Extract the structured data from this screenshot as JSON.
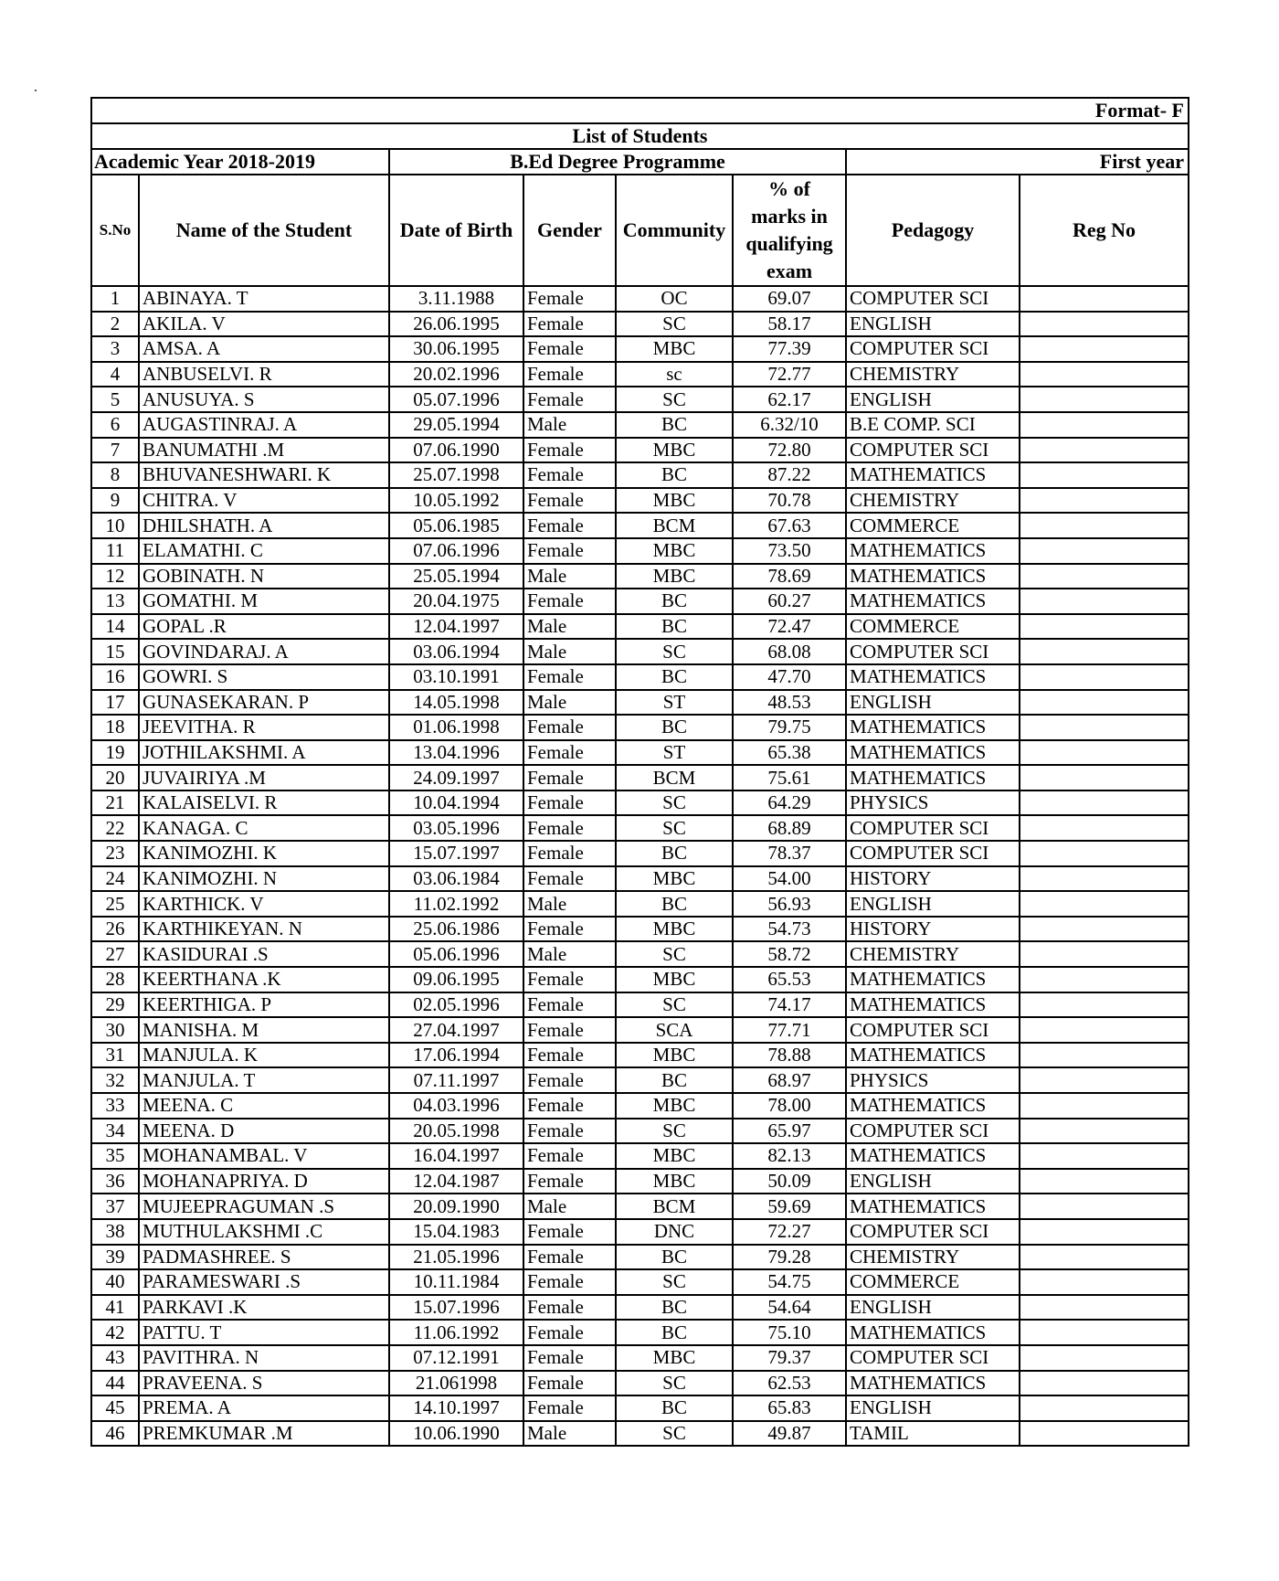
{
  "document": {
    "format_label": "Format- F",
    "title": "List of Students",
    "academic_year": "Academic Year 2018-2019",
    "programme": "B.Ed Degree Programme",
    "year": "First year"
  },
  "columns": [
    "S.No",
    "Name of the Student",
    "Date of Birth",
    "Gender",
    "Community",
    "% of marks in qualifying exam",
    "Pedagogy",
    "Reg No"
  ],
  "rows": [
    [
      "1",
      "ABINAYA. T",
      "3.11.1988",
      "Female",
      "OC",
      "69.07",
      "COMPUTER SCI",
      ""
    ],
    [
      "2",
      "AKILA. V",
      "26.06.1995",
      "Female",
      "SC",
      "58.17",
      "ENGLISH",
      ""
    ],
    [
      "3",
      "AMSA. A",
      "30.06.1995",
      "Female",
      "MBC",
      "77.39",
      "COMPUTER SCI",
      ""
    ],
    [
      "4",
      "ANBUSELVI. R",
      "20.02.1996",
      "Female",
      "sc",
      "72.77",
      "CHEMISTRY",
      ""
    ],
    [
      "5",
      "ANUSUYA. S",
      "05.07.1996",
      "Female",
      "SC",
      "62.17",
      "ENGLISH",
      ""
    ],
    [
      "6",
      "AUGASTINRAJ. A",
      "29.05.1994",
      "Male",
      "BC",
      "6.32/10",
      "B.E COMP. SCI",
      ""
    ],
    [
      "7",
      "BANUMATHI .M",
      "07.06.1990",
      "Female",
      "MBC",
      "72.80",
      "COMPUTER SCI",
      ""
    ],
    [
      "8",
      "BHUVANESHWARI. K",
      "25.07.1998",
      "Female",
      "BC",
      "87.22",
      "MATHEMATICS",
      ""
    ],
    [
      "9",
      "CHITRA. V",
      "10.05.1992",
      "Female",
      "MBC",
      "70.78",
      "CHEMISTRY",
      ""
    ],
    [
      "10",
      "DHILSHATH. A",
      "05.06.1985",
      "Female",
      "BCM",
      "67.63",
      "COMMERCE",
      ""
    ],
    [
      "11",
      "ELAMATHI. C",
      "07.06.1996",
      "Female",
      "MBC",
      "73.50",
      "MATHEMATICS",
      ""
    ],
    [
      "12",
      "GOBINATH. N",
      "25.05.1994",
      "Male",
      "MBC",
      "78.69",
      "MATHEMATICS",
      ""
    ],
    [
      "13",
      "GOMATHI. M",
      "20.04.1975",
      "Female",
      "BC",
      "60.27",
      "MATHEMATICS",
      ""
    ],
    [
      "14",
      "GOPAL .R",
      "12.04.1997",
      "Male",
      "BC",
      "72.47",
      "COMMERCE",
      ""
    ],
    [
      "15",
      "GOVINDARAJ. A",
      "03.06.1994",
      "Male",
      "SC",
      "68.08",
      "COMPUTER SCI",
      ""
    ],
    [
      "16",
      "GOWRI. S",
      "03.10.1991",
      "Female",
      "BC",
      "47.70",
      "MATHEMATICS",
      ""
    ],
    [
      "17",
      "GUNASEKARAN. P",
      "14.05.1998",
      "Male",
      "ST",
      "48.53",
      "ENGLISH",
      ""
    ],
    [
      "18",
      "JEEVITHA. R",
      "01.06.1998",
      "Female",
      "BC",
      "79.75",
      "MATHEMATICS",
      ""
    ],
    [
      "19",
      "JOTHILAKSHMI. A",
      "13.04.1996",
      "Female",
      "ST",
      "65.38",
      "MATHEMATICS",
      ""
    ],
    [
      "20",
      "JUVAIRIYA .M",
      "24.09.1997",
      "Female",
      "BCM",
      "75.61",
      "MATHEMATICS",
      ""
    ],
    [
      "21",
      "KALAISELVI. R",
      "10.04.1994",
      "Female",
      "SC",
      "64.29",
      "PHYSICS",
      ""
    ],
    [
      "22",
      "KANAGA. C",
      "03.05.1996",
      "Female",
      "SC",
      "68.89",
      "COMPUTER SCI",
      ""
    ],
    [
      "23",
      "KANIMOZHI. K",
      "15.07.1997",
      "Female",
      "BC",
      "78.37",
      "COMPUTER SCI",
      ""
    ],
    [
      "24",
      "KANIMOZHI. N",
      "03.06.1984",
      "Female",
      "MBC",
      "54.00",
      "HISTORY",
      ""
    ],
    [
      "25",
      "KARTHICK. V",
      "11.02.1992",
      "Male",
      "BC",
      "56.93",
      "ENGLISH",
      ""
    ],
    [
      "26",
      "KARTHIKEYAN. N",
      "25.06.1986",
      "Female",
      "MBC",
      "54.73",
      "HISTORY",
      ""
    ],
    [
      "27",
      "KASIDURAI .S",
      "05.06.1996",
      "Male",
      "SC",
      "58.72",
      "CHEMISTRY",
      ""
    ],
    [
      "28",
      "KEERTHANA .K",
      "09.06.1995",
      "Female",
      "MBC",
      "65.53",
      "MATHEMATICS",
      ""
    ],
    [
      "29",
      "KEERTHIGA. P",
      "02.05.1996",
      "Female",
      "SC",
      "74.17",
      "MATHEMATICS",
      ""
    ],
    [
      "30",
      "MANISHA. M",
      "27.04.1997",
      "Female",
      "SCA",
      "77.71",
      "COMPUTER SCI",
      ""
    ],
    [
      "31",
      "MANJULA. K",
      "17.06.1994",
      "Female",
      "MBC",
      "78.88",
      "MATHEMATICS",
      ""
    ],
    [
      "32",
      "MANJULA. T",
      "07.11.1997",
      "Female",
      "BC",
      "68.97",
      "PHYSICS",
      ""
    ],
    [
      "33",
      "MEENA. C",
      "04.03.1996",
      "Female",
      "MBC",
      "78.00",
      "MATHEMATICS",
      ""
    ],
    [
      "34",
      "MEENA. D",
      "20.05.1998",
      "Female",
      "SC",
      "65.97",
      "COMPUTER SCI",
      ""
    ],
    [
      "35",
      "MOHANAMBAL. V",
      "16.04.1997",
      "Female",
      "MBC",
      "82.13",
      "MATHEMATICS",
      ""
    ],
    [
      "36",
      "MOHANAPRIYA. D",
      "12.04.1987",
      "Female",
      "MBC",
      "50.09",
      "ENGLISH",
      ""
    ],
    [
      "37",
      "MUJEEPRAGUMAN .S",
      "20.09.1990",
      "Male",
      "BCM",
      "59.69",
      "MATHEMATICS",
      ""
    ],
    [
      "38",
      "MUTHULAKSHMI .C",
      "15.04.1983",
      "Female",
      "DNC",
      "72.27",
      "COMPUTER SCI",
      ""
    ],
    [
      "39",
      "PADMASHREE. S",
      "21.05.1996",
      "Female",
      "BC",
      "79.28",
      "CHEMISTRY",
      ""
    ],
    [
      "40",
      "PARAMESWARI .S",
      "10.11.1984",
      "Female",
      "SC",
      "54.75",
      "COMMERCE",
      ""
    ],
    [
      "41",
      "PARKAVI .K",
      "15.07.1996",
      "Female",
      "BC",
      "54.64",
      "ENGLISH",
      ""
    ],
    [
      "42",
      "PATTU. T",
      "11.06.1992",
      "Female",
      "BC",
      "75.10",
      "MATHEMATICS",
      ""
    ],
    [
      "43",
      "PAVITHRA. N",
      "07.12.1991",
      "Female",
      "MBC",
      "79.37",
      "COMPUTER SCI",
      ""
    ],
    [
      "44",
      "PRAVEENA. S",
      "21.061998",
      "Female",
      "SC",
      "62.53",
      "MATHEMATICS",
      ""
    ],
    [
      "45",
      "PREMA. A",
      "14.10.1997",
      "Female",
      "BC",
      "65.83",
      "ENGLISH",
      ""
    ],
    [
      "46",
      "PREMKUMAR .M",
      "10.06.1990",
      "Male",
      "SC",
      "49.87",
      "TAMIL",
      ""
    ]
  ]
}
